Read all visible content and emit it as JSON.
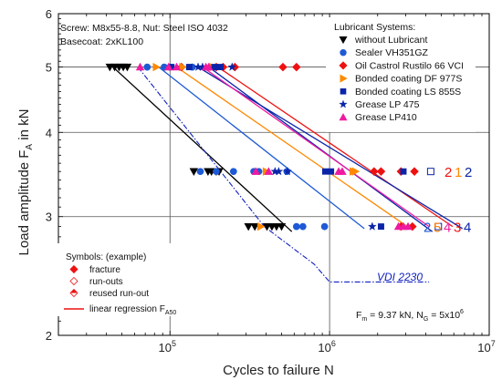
{
  "chart_data": {
    "type": "scatter",
    "title": "",
    "xlabel": "Cycles to failure N",
    "ylabel": "Load amplitude F_A in kN",
    "xscale": "log",
    "yscale": "log",
    "xlim": [
      20000,
      10000000
    ],
    "ylim": [
      2,
      6
    ],
    "x_ticks": [
      {
        "v": 100000,
        "b": "10",
        "e": "5"
      },
      {
        "v": 1000000,
        "b": "10",
        "e": "6"
      },
      {
        "v": 10000000,
        "b": "10",
        "e": "7"
      }
    ],
    "y_ticks": [
      2,
      3,
      4,
      5,
      6
    ],
    "grid": "major",
    "notes": {
      "screw": "Screw: M8x55-8.8, Nut: Steel ISO 4032",
      "basecoat": "Basecoat: 2xKL100",
      "fm_prefix": "F",
      "fm_sub": "m",
      "fm_value": " = 9.37 kN, N",
      "ng_sub": "G",
      "ng_value": " = 5x10",
      "ng_exp": "6"
    },
    "legend": {
      "title": "Lubricant Systems:",
      "placement": "top-right"
    },
    "symbols_legend": {
      "title": "Symbols: (example)",
      "items": [
        "fracture",
        "run-outs",
        "reused run-out"
      ],
      "regression_prefix": "linear regression F",
      "regression_sub": "A50"
    },
    "runout_labels": [
      {
        "y": 3.5,
        "chars": [
          "2",
          "1",
          "2"
        ],
        "colors": [
          "#ee1111",
          "#ff8800",
          "#0b24a8"
        ]
      },
      {
        "y": 2.9,
        "chars": [
          "2",
          "5",
          "4",
          "3",
          "4"
        ],
        "colors": [
          "#1e5ad6",
          "#ff7700",
          "#ee1aa0",
          "#ee1111",
          "#0b24a8"
        ]
      }
    ],
    "vdi": {
      "name": "VDI 2230",
      "color": "#1020c0",
      "points": [
        [
          63000,
          5.0
        ],
        [
          390000,
          2.9
        ],
        [
          800000,
          2.55
        ],
        [
          1000000,
          2.4
        ],
        [
          4200000,
          2.4
        ]
      ]
    },
    "series": [
      {
        "name": "without Lubricant",
        "color": "#000000",
        "marker": "tri-down",
        "points": [
          [
            42000,
            5.0
          ],
          [
            45000,
            5.0
          ],
          [
            48000,
            5.0
          ],
          [
            51000,
            5.0
          ],
          [
            54000,
            5.0
          ],
          [
            141000,
            3.5
          ],
          [
            173000,
            3.5
          ],
          [
            182000,
            3.5
          ],
          [
            195000,
            3.5
          ],
          [
            203000,
            3.5
          ],
          [
            310000,
            2.9
          ],
          [
            340000,
            2.9
          ],
          [
            405000,
            2.9
          ],
          [
            435000,
            2.9
          ],
          [
            465000,
            2.9
          ],
          [
            500000,
            2.9
          ]
        ],
        "regression": [
          [
            44000,
            5.0
          ],
          [
            580000,
            2.85
          ]
        ]
      },
      {
        "name": "Sealer VH351GZ",
        "color": "#1e5ad6",
        "marker": "circle",
        "points": [
          [
            72000,
            5.0
          ],
          [
            92000,
            5.0
          ],
          [
            100000,
            5.0
          ],
          [
            138000,
            5.0
          ],
          [
            155000,
            3.5
          ],
          [
            195000,
            3.5
          ],
          [
            250000,
            3.5
          ],
          [
            335000,
            3.5
          ],
          [
            360000,
            3.5
          ],
          [
            540000,
            3.5
          ],
          [
            620000,
            2.9
          ],
          [
            680000,
            2.9
          ],
          [
            930000,
            2.9
          ]
        ],
        "regression": [
          [
            85000,
            5.0
          ],
          [
            1650000,
            2.88
          ]
        ]
      },
      {
        "name": "Oil Castrol Rustilo 66 VCI",
        "color": "#ee1111",
        "marker": "diamond",
        "points": [
          [
            118000,
            5.0
          ],
          [
            195000,
            5.0
          ],
          [
            215000,
            5.0
          ],
          [
            255000,
            5.0
          ],
          [
            510000,
            5.0
          ],
          [
            620000,
            5.0
          ],
          [
            1900000,
            3.5
          ],
          [
            2100000,
            3.5
          ],
          [
            2800000,
            3.5
          ],
          [
            3400000,
            3.5
          ],
          [
            2800000,
            2.9
          ],
          [
            3300000,
            2.9
          ]
        ],
        "regression": [
          [
            200000,
            5.0
          ],
          [
            5900000,
            2.9
          ]
        ]
      },
      {
        "name": "Bonded coating DF 977S",
        "color": "#ff8800",
        "marker": "tri-right",
        "points": [
          [
            82000,
            5.0
          ],
          [
            120000,
            5.0
          ],
          [
            185000,
            5.0
          ],
          [
            400000,
            3.5
          ],
          [
            1400000,
            3.5
          ],
          [
            1450000,
            3.5
          ],
          [
            370000,
            2.9
          ]
        ],
        "regression": [
          [
            110000,
            5.0
          ],
          [
            3200000,
            2.88
          ]
        ]
      },
      {
        "name": "Bonded coating LS 855S",
        "color": "#0b24a8",
        "marker": "square",
        "points": [
          [
            102000,
            5.0
          ],
          [
            132000,
            5.0
          ],
          [
            190000,
            5.0
          ],
          [
            207000,
            5.0
          ],
          [
            940000,
            3.5
          ],
          [
            1020000,
            3.5
          ],
          [
            2900000,
            3.5
          ],
          [
            2100000,
            2.9
          ]
        ],
        "regression": [
          [
            150000,
            5.0
          ],
          [
            6800000,
            2.88
          ]
        ]
      },
      {
        "name": "Grease LP 475",
        "color": "#0b24a8",
        "marker": "star",
        "points": [
          [
            150000,
            5.0
          ],
          [
            160000,
            5.0
          ],
          [
            245000,
            5.0
          ],
          [
            455000,
            3.5
          ],
          [
            480000,
            3.5
          ],
          [
            545000,
            3.5
          ],
          [
            1850000,
            2.9
          ]
        ],
        "regression": [
          [
            175000,
            5.0
          ],
          [
            4400000,
            2.85
          ]
        ]
      },
      {
        "name": "Grease LP410",
        "color": "#ee1aa0",
        "marker": "tri-up",
        "points": [
          [
            65000,
            5.0
          ],
          [
            98000,
            5.0
          ],
          [
            110000,
            5.0
          ],
          [
            168000,
            5.0
          ],
          [
            175000,
            5.0
          ],
          [
            345000,
            3.5
          ],
          [
            415000,
            3.5
          ],
          [
            1140000,
            3.5
          ],
          [
            1200000,
            3.5
          ],
          [
            2700000,
            2.9
          ],
          [
            2900000,
            2.9
          ],
          [
            3100000,
            2.9
          ]
        ],
        "regression": [
          [
            160000,
            5.0
          ],
          [
            4200000,
            2.9
          ]
        ]
      }
    ],
    "runouts": [
      {
        "x": 4300000,
        "y": 3.5,
        "color": "#0b24a8"
      },
      {
        "x": 4800000,
        "y": 2.9,
        "color": "#0b24a8"
      }
    ]
  }
}
